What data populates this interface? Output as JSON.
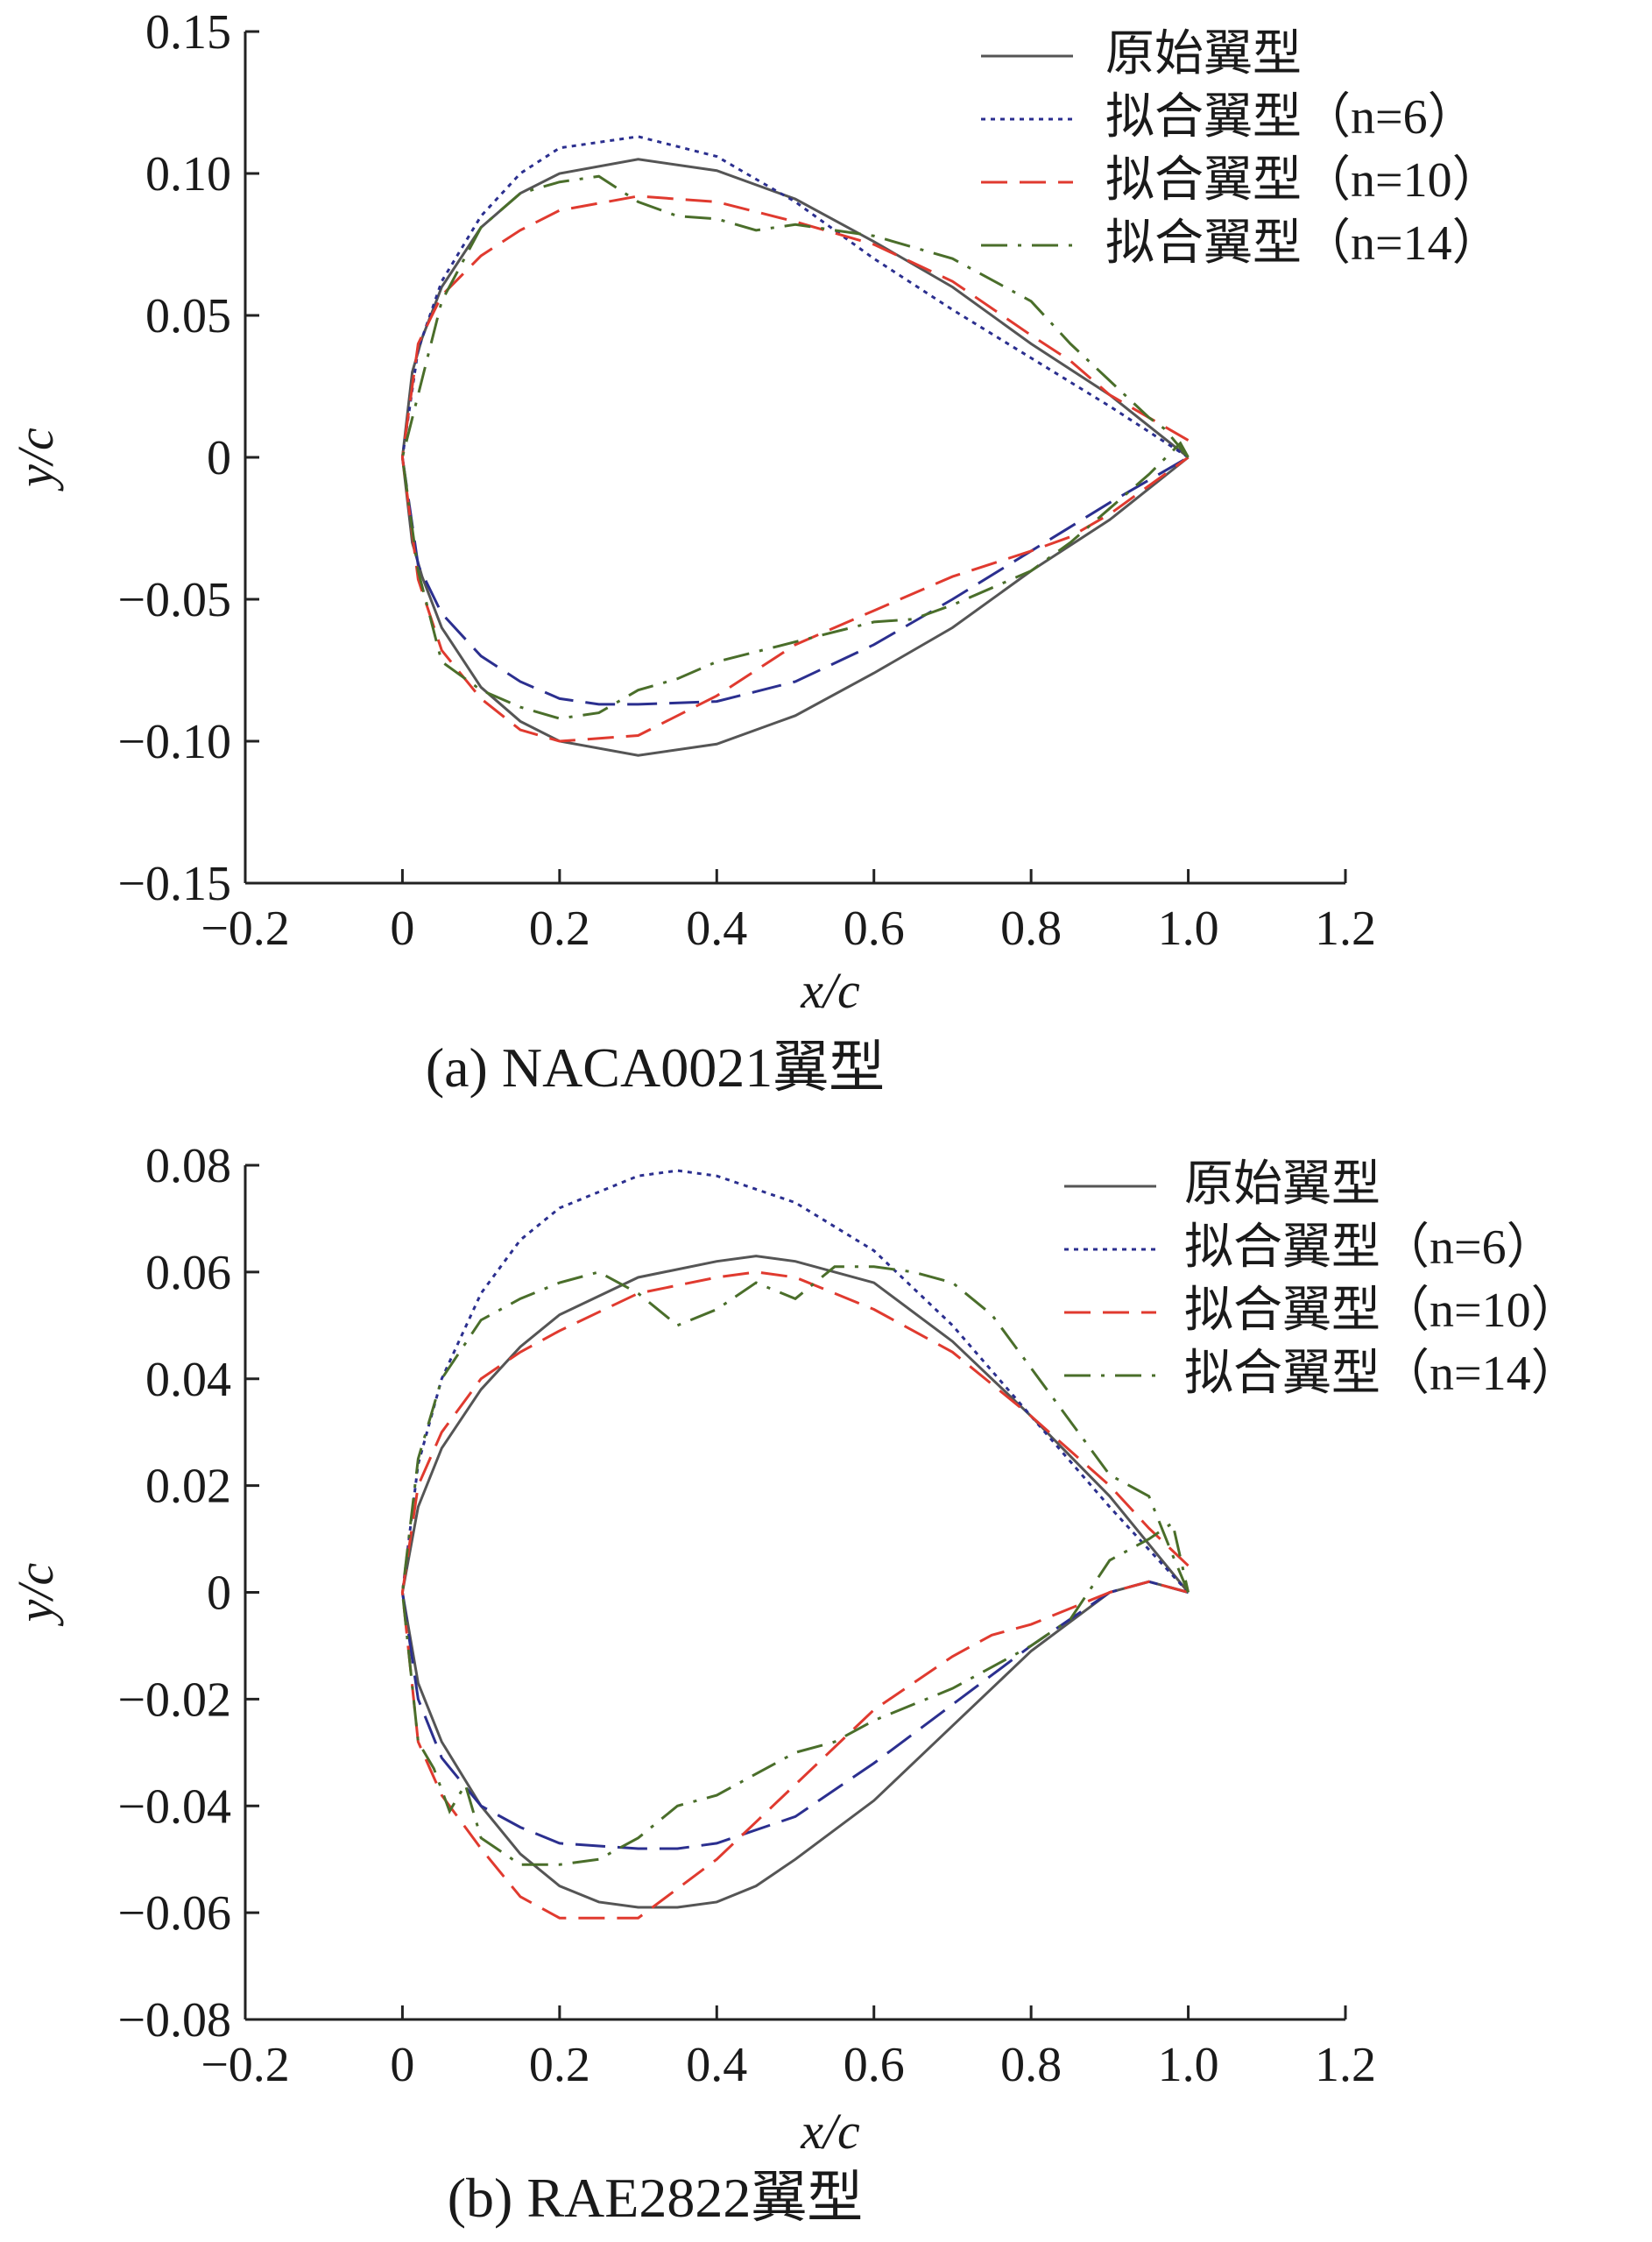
{
  "chart_data": [
    {
      "type": "line",
      "caption": "(a)  NACA0021翼型",
      "xlabel": "x/c",
      "ylabel": "y/c",
      "xlim": [
        -0.2,
        1.2
      ],
      "ylim": [
        -0.15,
        0.15
      ],
      "xticks": [
        -0.2,
        0,
        0.2,
        0.4,
        0.6,
        0.8,
        1.0,
        1.2
      ],
      "xtick_labels": [
        "−0.2",
        "0",
        "0.2",
        "0.4",
        "0.6",
        "0.8",
        "1.0",
        "1.2"
      ],
      "yticks": [
        0.15,
        0.1,
        0.05,
        0,
        -0.05,
        -0.1,
        -0.15
      ],
      "ytick_labels": [
        "0.15",
        "0.10",
        "0.05",
        "0",
        "−0.05",
        "−0.10",
        "−0.15"
      ],
      "grid": false,
      "legend_position": "top-right",
      "series": [
        {
          "name": "原始翼型",
          "color": "#555555",
          "style": "solid",
          "x": [
            1.0,
            0.9,
            0.8,
            0.7,
            0.6,
            0.5,
            0.4,
            0.3,
            0.2,
            0.15,
            0.1,
            0.05,
            0.025,
            0.0125,
            0.0,
            0.0125,
            0.025,
            0.05,
            0.1,
            0.15,
            0.2,
            0.3,
            0.4,
            0.5,
            0.6,
            0.7,
            0.8,
            0.9,
            1.0
          ],
          "y": [
            0.0,
            0.022,
            0.04,
            0.06,
            0.076,
            0.091,
            0.101,
            0.105,
            0.1,
            0.093,
            0.081,
            0.06,
            0.042,
            0.03,
            0.0,
            -0.03,
            -0.042,
            -0.06,
            -0.081,
            -0.093,
            -0.1,
            -0.105,
            -0.101,
            -0.091,
            -0.076,
            -0.06,
            -0.04,
            -0.022,
            0.0
          ]
        },
        {
          "name": "拟合翼型（n=6）",
          "color": "#2b2f8f",
          "style": "dotted-upper-dashed-lower",
          "x": [
            1.0,
            0.9,
            0.8,
            0.7,
            0.6,
            0.5,
            0.4,
            0.3,
            0.2,
            0.15,
            0.1,
            0.05,
            0.02,
            0.0,
            0.02,
            0.05,
            0.1,
            0.15,
            0.2,
            0.25,
            0.3,
            0.4,
            0.5,
            0.6,
            0.7,
            0.8,
            0.9,
            1.0
          ],
          "y": [
            0.0,
            0.018,
            0.035,
            0.052,
            0.07,
            0.09,
            0.106,
            0.113,
            0.109,
            0.1,
            0.085,
            0.062,
            0.038,
            0.0,
            -0.038,
            -0.055,
            -0.07,
            -0.079,
            -0.085,
            -0.087,
            -0.087,
            -0.086,
            -0.079,
            -0.066,
            -0.05,
            -0.033,
            -0.016,
            0.0
          ]
        },
        {
          "name": "拟合翼型（n=10）",
          "color": "#e03a2f",
          "style": "dashed",
          "x": [
            1.0,
            0.95,
            0.9,
            0.85,
            0.8,
            0.7,
            0.6,
            0.5,
            0.4,
            0.3,
            0.2,
            0.15,
            0.1,
            0.05,
            0.02,
            0.0,
            0.02,
            0.05,
            0.1,
            0.15,
            0.2,
            0.3,
            0.4,
            0.5,
            0.6,
            0.7,
            0.8,
            0.85,
            0.9,
            1.0
          ],
          "y": [
            0.006,
            0.014,
            0.022,
            0.034,
            0.043,
            0.062,
            0.075,
            0.083,
            0.09,
            0.092,
            0.087,
            0.08,
            0.071,
            0.057,
            0.04,
            0.0,
            -0.043,
            -0.068,
            -0.085,
            -0.096,
            -0.1,
            -0.098,
            -0.084,
            -0.066,
            -0.054,
            -0.042,
            -0.033,
            -0.028,
            -0.02,
            0.0
          ]
        },
        {
          "name": "拟合翼型（n=14）",
          "color": "#4a6e2a",
          "style": "dashdot",
          "x": [
            1.0,
            0.97,
            0.95,
            0.9,
            0.85,
            0.8,
            0.7,
            0.6,
            0.5,
            0.45,
            0.4,
            0.35,
            0.3,
            0.25,
            0.2,
            0.15,
            0.1,
            0.05,
            0.0,
            0.02,
            0.05,
            0.1,
            0.15,
            0.2,
            0.25,
            0.3,
            0.35,
            0.4,
            0.5,
            0.6,
            0.65,
            0.7,
            0.8,
            0.85,
            0.9,
            0.95,
            0.99,
            1.0
          ],
          "y": [
            0.0,
            0.01,
            0.014,
            0.027,
            0.04,
            0.055,
            0.07,
            0.078,
            0.082,
            0.08,
            0.084,
            0.085,
            0.09,
            0.099,
            0.097,
            0.093,
            0.081,
            0.055,
            0.0,
            -0.04,
            -0.072,
            -0.082,
            -0.088,
            -0.092,
            -0.09,
            -0.082,
            -0.078,
            -0.072,
            -0.065,
            -0.058,
            -0.057,
            -0.052,
            -0.04,
            -0.03,
            -0.018,
            -0.006,
            0.005,
            0.0
          ]
        }
      ]
    },
    {
      "type": "line",
      "caption": "(b)  RAE2822翼型",
      "xlabel": "x/c",
      "ylabel": "y/c",
      "xlim": [
        -0.2,
        1.2
      ],
      "ylim": [
        -0.08,
        0.08
      ],
      "xticks": [
        -0.2,
        0,
        0.2,
        0.4,
        0.6,
        0.8,
        1.0,
        1.2
      ],
      "xtick_labels": [
        "−0.2",
        "0",
        "0.2",
        "0.4",
        "0.6",
        "0.8",
        "1.0",
        "1.2"
      ],
      "yticks": [
        0.08,
        0.06,
        0.04,
        0.02,
        0,
        -0.02,
        -0.04,
        -0.06,
        -0.08
      ],
      "ytick_labels": [
        "0.08",
        "0.06",
        "0.04",
        "0.02",
        "0",
        "−0.02",
        "−0.04",
        "−0.06",
        "−0.08"
      ],
      "grid": false,
      "legend_position": "top-right",
      "series": [
        {
          "name": "原始翼型",
          "color": "#555555",
          "style": "solid",
          "x": [
            1.0,
            0.9,
            0.8,
            0.7,
            0.6,
            0.5,
            0.45,
            0.4,
            0.3,
            0.2,
            0.15,
            0.1,
            0.05,
            0.02,
            0.0,
            0.02,
            0.05,
            0.1,
            0.15,
            0.2,
            0.25,
            0.3,
            0.35,
            0.4,
            0.45,
            0.5,
            0.6,
            0.7,
            0.8,
            0.9,
            0.95,
            1.0
          ],
          "y": [
            0.0,
            0.018,
            0.033,
            0.047,
            0.058,
            0.062,
            0.063,
            0.062,
            0.059,
            0.052,
            0.046,
            0.038,
            0.027,
            0.016,
            0.0,
            -0.017,
            -0.028,
            -0.04,
            -0.049,
            -0.055,
            -0.058,
            -0.059,
            -0.059,
            -0.058,
            -0.055,
            -0.05,
            -0.039,
            -0.025,
            -0.011,
            0.0,
            0.002,
            0.0
          ]
        },
        {
          "name": "拟合翼型（n=6）",
          "color": "#2b2f8f",
          "style": "dotted-upper-dashed-lower",
          "x": [
            1.0,
            0.9,
            0.8,
            0.7,
            0.6,
            0.5,
            0.4,
            0.35,
            0.3,
            0.2,
            0.15,
            0.1,
            0.05,
            0.02,
            0.0,
            0.02,
            0.05,
            0.1,
            0.15,
            0.2,
            0.3,
            0.35,
            0.4,
            0.5,
            0.6,
            0.7,
            0.8,
            0.9,
            0.95,
            1.0
          ],
          "y": [
            0.0,
            0.016,
            0.033,
            0.05,
            0.064,
            0.073,
            0.078,
            0.079,
            0.078,
            0.072,
            0.066,
            0.056,
            0.04,
            0.024,
            0.0,
            -0.02,
            -0.031,
            -0.04,
            -0.044,
            -0.047,
            -0.048,
            -0.048,
            -0.047,
            -0.042,
            -0.032,
            -0.021,
            -0.01,
            0.0,
            0.002,
            0.0
          ]
        },
        {
          "name": "拟合翼型（n=10）",
          "color": "#e03a2f",
          "style": "dashed",
          "x": [
            1.0,
            0.95,
            0.9,
            0.8,
            0.7,
            0.6,
            0.55,
            0.5,
            0.45,
            0.4,
            0.3,
            0.2,
            0.15,
            0.1,
            0.05,
            0.02,
            0.0,
            0.02,
            0.05,
            0.1,
            0.15,
            0.2,
            0.25,
            0.3,
            0.4,
            0.45,
            0.5,
            0.6,
            0.7,
            0.75,
            0.8,
            0.9,
            0.95,
            1.0
          ],
          "y": [
            0.005,
            0.012,
            0.02,
            0.033,
            0.045,
            0.053,
            0.056,
            0.059,
            0.06,
            0.059,
            0.056,
            0.049,
            0.045,
            0.04,
            0.03,
            0.02,
            0.0,
            -0.028,
            -0.038,
            -0.048,
            -0.057,
            -0.061,
            -0.061,
            -0.061,
            -0.05,
            -0.043,
            -0.036,
            -0.022,
            -0.012,
            -0.008,
            -0.006,
            0.0,
            0.002,
            0.0
          ]
        },
        {
          "name": "拟合翼型（n=14）",
          "color": "#4a6e2a",
          "style": "dashdot",
          "x": [
            1.0,
            0.98,
            0.95,
            0.9,
            0.85,
            0.8,
            0.75,
            0.7,
            0.65,
            0.6,
            0.55,
            0.5,
            0.45,
            0.4,
            0.35,
            0.3,
            0.25,
            0.2,
            0.15,
            0.1,
            0.05,
            0.02,
            0.0,
            0.02,
            0.04,
            0.06,
            0.08,
            0.1,
            0.15,
            0.2,
            0.25,
            0.3,
            0.35,
            0.4,
            0.5,
            0.55,
            0.6,
            0.7,
            0.8,
            0.85,
            0.9,
            0.95,
            0.98,
            1.0
          ],
          "y": [
            0.0,
            0.007,
            0.018,
            0.022,
            0.032,
            0.042,
            0.052,
            0.058,
            0.06,
            0.061,
            0.061,
            0.055,
            0.058,
            0.053,
            0.05,
            0.056,
            0.06,
            0.058,
            0.055,
            0.051,
            0.04,
            0.025,
            0.0,
            -0.028,
            -0.033,
            -0.041,
            -0.036,
            -0.046,
            -0.051,
            -0.051,
            -0.05,
            -0.046,
            -0.04,
            -0.038,
            -0.03,
            -0.028,
            -0.024,
            -0.018,
            -0.01,
            -0.005,
            0.006,
            0.01,
            0.013,
            0.0
          ]
        }
      ]
    }
  ]
}
